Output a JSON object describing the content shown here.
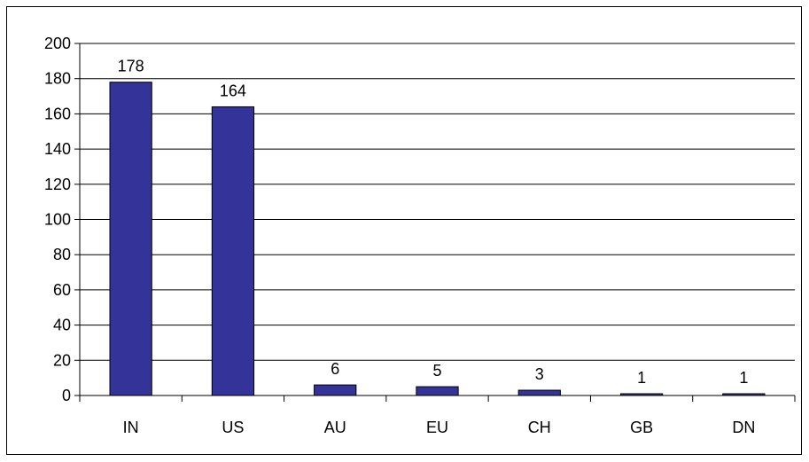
{
  "chart_data": {
    "type": "bar",
    "categories": [
      "IN",
      "US",
      "AU",
      "EU",
      "CH",
      "GB",
      "DN"
    ],
    "values": [
      178,
      164,
      6,
      5,
      3,
      1,
      1
    ],
    "data_labels": [
      "178",
      "164",
      "6",
      "5",
      "3",
      "1",
      "1"
    ],
    "title": "",
    "xlabel": "",
    "ylabel": "",
    "ylim": [
      0,
      200
    ],
    "yticks": [
      0,
      20,
      40,
      60,
      80,
      100,
      120,
      140,
      160,
      180,
      200
    ],
    "grid": true,
    "legend": "none",
    "colors": {
      "bar": "#333399",
      "bar_edge": "#000000",
      "grid": "#000000"
    }
  }
}
